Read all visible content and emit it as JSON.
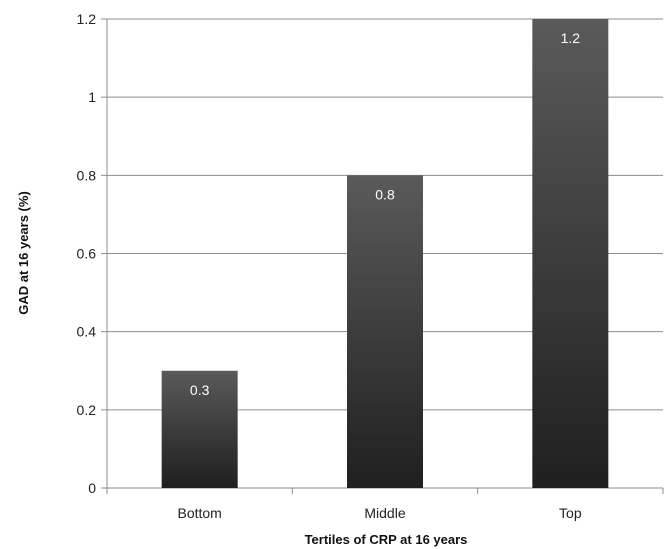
{
  "chart_data": {
    "type": "bar",
    "title": "",
    "xlabel": "Tertiles of CRP at 16 years",
    "ylabel": "GAD at 16 years (%)",
    "categories": [
      "Bottom",
      "Middle",
      "Top"
    ],
    "values": [
      0.3,
      0.8,
      1.2
    ],
    "data_labels": [
      "0.3",
      "0.8",
      "1.2"
    ],
    "ylim": [
      0,
      1.2
    ],
    "yticks": [
      0,
      0.2,
      0.4,
      0.6,
      0.8,
      1,
      1.2
    ],
    "ytick_labels": [
      "0",
      "0.2",
      "0.4",
      "0.6",
      "0.8",
      "1",
      "1.2"
    ],
    "grid": true,
    "legend": "none",
    "colors": {
      "bar_top": "#5a5a5a",
      "bar_bottom": "#1f1f1f",
      "grid": "#8c8c8c",
      "axis": "#8c8c8c"
    }
  }
}
